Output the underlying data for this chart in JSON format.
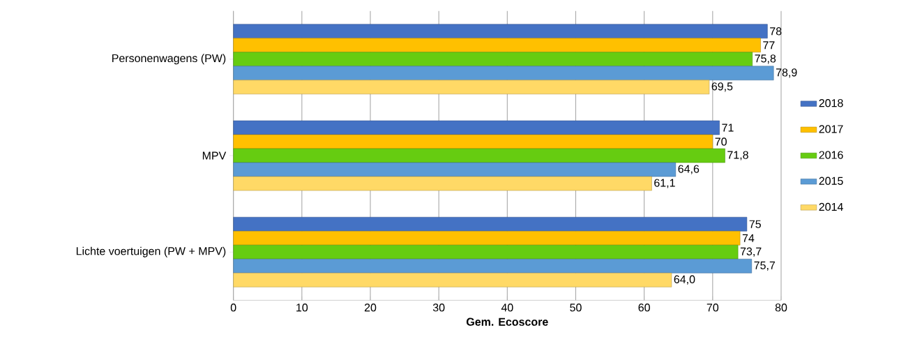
{
  "chart_data": {
    "type": "bar",
    "orientation": "horizontal",
    "xlabel": "Gem. Ecoscore",
    "categories": [
      "Personenwagens (PW)",
      "MPV",
      "Lichte voertuigen (PW + MPV)"
    ],
    "series": [
      {
        "name": "2018",
        "color": "#4472c4",
        "values": [
          78,
          71,
          75
        ],
        "value_labels": [
          "78",
          "71",
          "75"
        ]
      },
      {
        "name": "2017",
        "color": "#ffc000",
        "values": [
          77,
          70,
          74
        ],
        "value_labels": [
          "77",
          "70",
          "74"
        ]
      },
      {
        "name": "2016",
        "color": "#66cc11",
        "values": [
          75.8,
          71.8,
          73.7
        ],
        "value_labels": [
          "75,8",
          "71,8",
          "73,7"
        ]
      },
      {
        "name": "2015",
        "color": "#5b9bd5",
        "values": [
          78.9,
          64.6,
          75.7
        ],
        "value_labels": [
          "78,9",
          "64,6",
          "75,7"
        ]
      },
      {
        "name": "2014",
        "color": "#ffd966",
        "values": [
          69.5,
          61.1,
          64.0
        ],
        "value_labels": [
          "69,5",
          "61,1",
          "64,0"
        ]
      }
    ],
    "xlim": [
      0,
      80
    ],
    "xticks": [
      0,
      10,
      20,
      30,
      40,
      50,
      60,
      70,
      80
    ],
    "grid": "x",
    "legend": "right"
  }
}
